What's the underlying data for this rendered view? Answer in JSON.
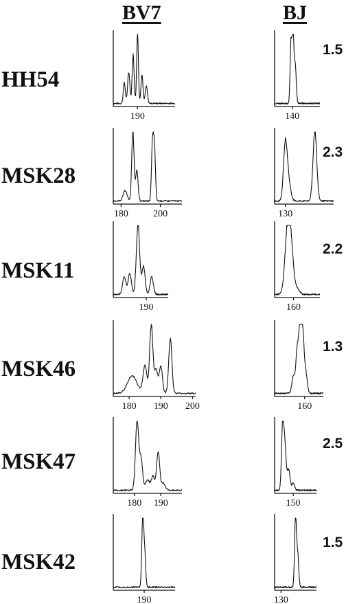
{
  "headers": {
    "bv7": "BV7",
    "bj": "BJ"
  },
  "chart_data": {
    "type": "line",
    "description_units": "x = fragment length; y = relative fluorescence intensity (0-1, unlabeled axis)",
    "rows": [
      {
        "sample": "HH54",
        "ratio": "1.5",
        "bv7": {
          "xlim": [
            179,
            207
          ],
          "ticks": [
            190
          ],
          "peaks": [
            [
              184,
              0.3,
              0.45
            ],
            [
              186,
              0.45,
              0.5
            ],
            [
              188,
              0.7,
              0.45
            ],
            [
              190,
              1.0,
              0.4
            ],
            [
              192,
              0.4,
              0.45
            ],
            [
              194,
              0.25,
              0.5
            ]
          ]
        },
        "bj": {
          "xlim": [
            133,
            151
          ],
          "ticks": [
            140
          ],
          "peaks": [
            [
              139.5,
              0.85,
              0.35
            ],
            [
              140.3,
              1.0,
              0.35
            ],
            [
              141.2,
              0.55,
              0.4
            ]
          ]
        }
      },
      {
        "sample": "MSK28",
        "ratio": "2.3",
        "bv7": {
          "xlim": [
            176,
            211
          ],
          "ticks": [
            180,
            200
          ],
          "peaks": [
            [
              182,
              0.15,
              1.0
            ],
            [
              186,
              1.0,
              0.6
            ],
            [
              188,
              0.45,
              0.6
            ],
            [
              196,
              0.85,
              0.5
            ],
            [
              197,
              0.75,
              0.5
            ]
          ]
        },
        "bj": {
          "xlim": [
            128,
            139
          ],
          "ticks": [
            130
          ],
          "peaks": [
            [
              130,
              0.8,
              0.35
            ],
            [
              130.6,
              0.25,
              0.4
            ],
            [
              135.5,
              1.0,
              0.35
            ]
          ]
        }
      },
      {
        "sample": "MSK11",
        "ratio": "2.2",
        "bv7": {
          "xlim": [
            178,
            198
          ],
          "ticks": [
            190
          ],
          "peaks": [
            [
              182,
              0.25,
              0.6
            ],
            [
              184,
              0.3,
              0.6
            ],
            [
              187,
              1.0,
              0.6
            ],
            [
              189,
              0.4,
              0.6
            ],
            [
              192,
              0.25,
              0.6
            ]
          ]
        },
        "bj": {
          "xlim": [
            155,
            167
          ],
          "ticks": [
            160
          ],
          "peaks": [
            [
              158.5,
              1.0,
              0.7
            ],
            [
              159.5,
              0.45,
              0.6
            ],
            [
              161,
              0.08,
              0.6
            ]
          ]
        }
      },
      {
        "sample": "MSK46",
        "ratio": "1.3",
        "bv7": {
          "xlim": [
            175,
            201
          ],
          "ticks": [
            180,
            190,
            200
          ],
          "peaks": [
            [
              181,
              0.25,
              1.5
            ],
            [
              185,
              0.4,
              0.6
            ],
            [
              187,
              1.0,
              0.5
            ],
            [
              188.5,
              0.35,
              0.5
            ],
            [
              190,
              0.4,
              0.5
            ],
            [
              193,
              0.8,
              0.5
            ]
          ]
        },
        "bj": {
          "xlim": [
            152,
            165
          ],
          "ticks": [
            160
          ],
          "peaks": [
            [
              157,
              0.25,
              0.4
            ],
            [
              158,
              0.6,
              0.35
            ],
            [
              158.8,
              1.0,
              0.35
            ],
            [
              159.5,
              0.8,
              0.35
            ],
            [
              160.3,
              0.3,
              0.4
            ]
          ]
        }
      },
      {
        "sample": "MSK47",
        "ratio": "2.5",
        "bv7": {
          "xlim": [
            172,
            198
          ],
          "ticks": [
            180,
            190
          ],
          "peaks": [
            [
              181,
              1.0,
              0.6
            ],
            [
              182.5,
              0.45,
              0.6
            ],
            [
              185,
              0.15,
              0.8
            ],
            [
              187,
              0.2,
              0.6
            ],
            [
              189,
              0.55,
              0.6
            ],
            [
              191,
              0.1,
              0.7
            ]
          ]
        },
        "bj": {
          "xlim": [
            142,
            160
          ],
          "ticks": [
            150
          ],
          "peaks": [
            [
              145.5,
              1.0,
              0.5
            ],
            [
              146.5,
              0.55,
              0.5
            ],
            [
              148,
              0.3,
              0.6
            ],
            [
              150,
              0.1,
              0.6
            ]
          ]
        }
      },
      {
        "sample": "MSK42",
        "ratio": "1.5",
        "bv7": {
          "xlim": [
            179,
            201
          ],
          "ticks": [
            190
          ],
          "peaks": [
            [
              189.5,
              1.0,
              0.35
            ],
            [
              190.2,
              0.45,
              0.35
            ]
          ]
        },
        "bj": {
          "xlim": [
            128,
            141
          ],
          "ticks": [
            130
          ],
          "peaks": [
            [
              134.5,
              1.0,
              0.3
            ],
            [
              135.2,
              0.45,
              0.3
            ]
          ]
        }
      }
    ]
  }
}
